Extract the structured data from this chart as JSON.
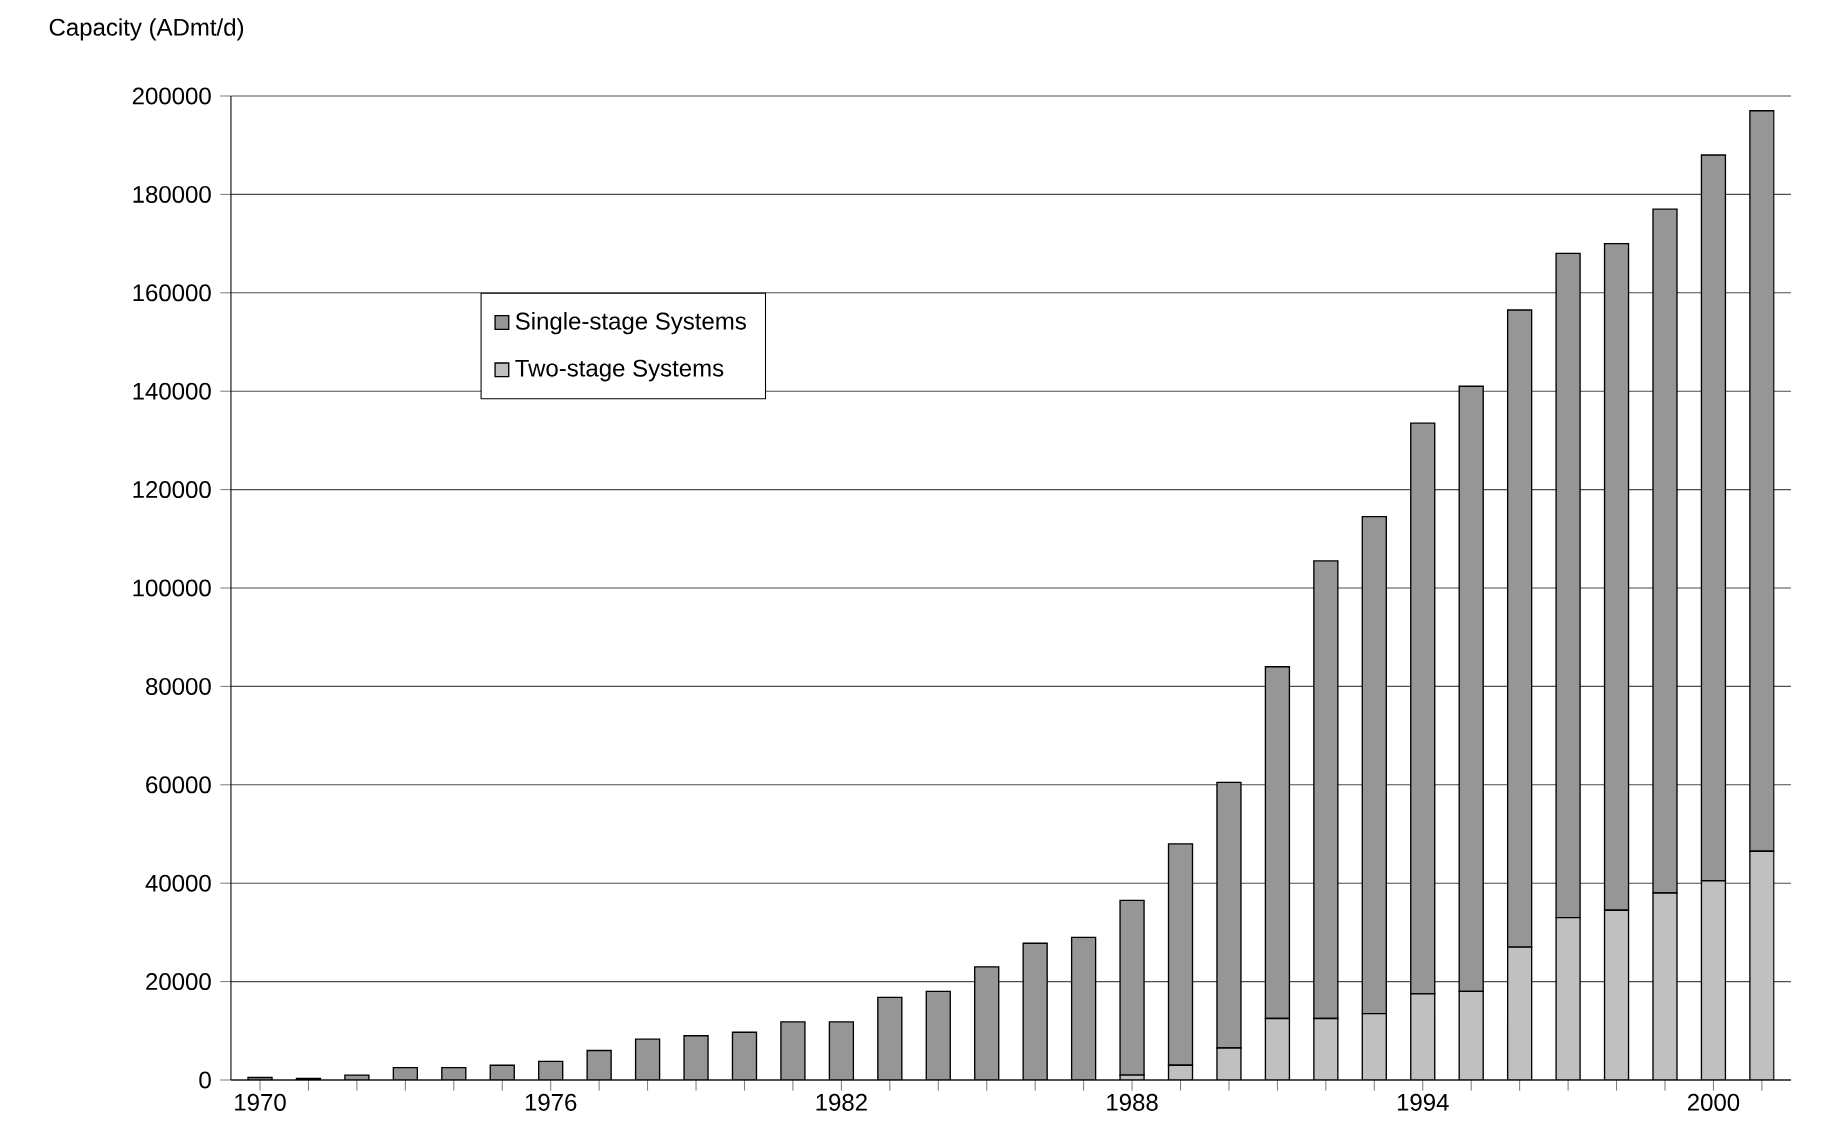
{
  "chart_data": {
    "type": "bar",
    "stacked": true,
    "ylabel": "Capacity (ADmt/d)",
    "categories": [
      "1970",
      null,
      null,
      null,
      null,
      null,
      "1976",
      null,
      null,
      null,
      null,
      null,
      "1982",
      null,
      null,
      null,
      null,
      null,
      "1988",
      null,
      null,
      null,
      null,
      null,
      "1994",
      null,
      null,
      null,
      null,
      null,
      "2000",
      null
    ],
    "series": [
      {
        "name": "Two-stage Systems",
        "color": "#c0c0c0",
        "values": [
          0,
          0,
          0,
          0,
          0,
          0,
          0,
          0,
          0,
          0,
          0,
          0,
          0,
          0,
          0,
          0,
          0,
          0,
          1000,
          3000,
          6500,
          12500,
          12500,
          13500,
          17500,
          18000,
          27000,
          33000,
          34500,
          38000,
          40500,
          46500
        ]
      },
      {
        "name": "Single-stage Systems",
        "color": "#969696",
        "values": [
          500,
          300,
          1000,
          2500,
          2500,
          3000,
          3800,
          6000,
          8300,
          9000,
          9700,
          11800,
          11800,
          16800,
          18000,
          23000,
          27800,
          29000,
          35500,
          45000,
          54000,
          71500,
          93000,
          101000,
          116000,
          123000,
          129500,
          135000,
          135500,
          139000,
          147500,
          150500
        ]
      }
    ],
    "ylim": [
      0,
      200000
    ],
    "yticks": [
      0,
      20000,
      40000,
      60000,
      80000,
      100000,
      120000,
      140000,
      160000,
      180000,
      200000
    ],
    "grid": "y",
    "legend": "top left"
  }
}
